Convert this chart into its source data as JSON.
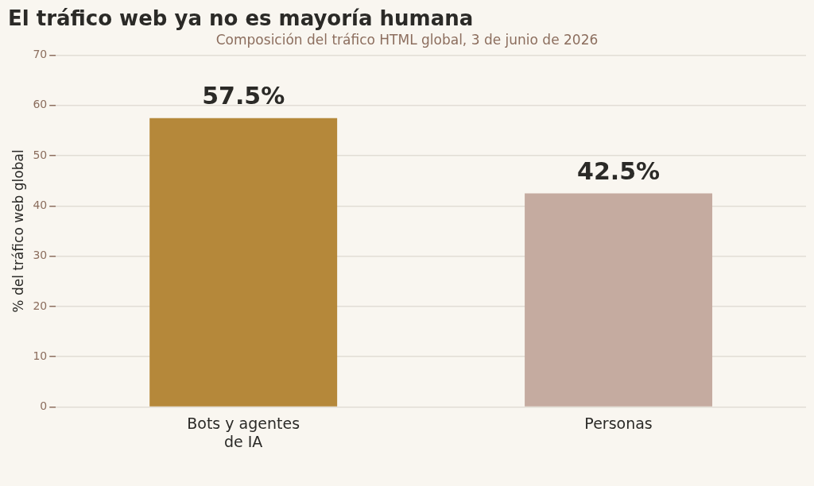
{
  "chart_data": {
    "type": "bar",
    "title": "El tráfico web ya no es mayoría humana",
    "subtitle": "Composición del tráfico HTML global, 3 de junio de 2026",
    "ylabel": "% del tráfico web global",
    "categories": [
      "Bots y agentes de IA",
      "Personas"
    ],
    "values": [
      57.5,
      42.5
    ],
    "colors": [
      "#b5883a",
      "#c5aba0"
    ],
    "value_labels": [
      "57.5%",
      "42.5%"
    ],
    "ylim": [
      0,
      70
    ],
    "yticks": [
      0,
      10,
      20,
      30,
      40,
      50,
      60,
      70
    ],
    "grid": "y",
    "legend": false
  }
}
